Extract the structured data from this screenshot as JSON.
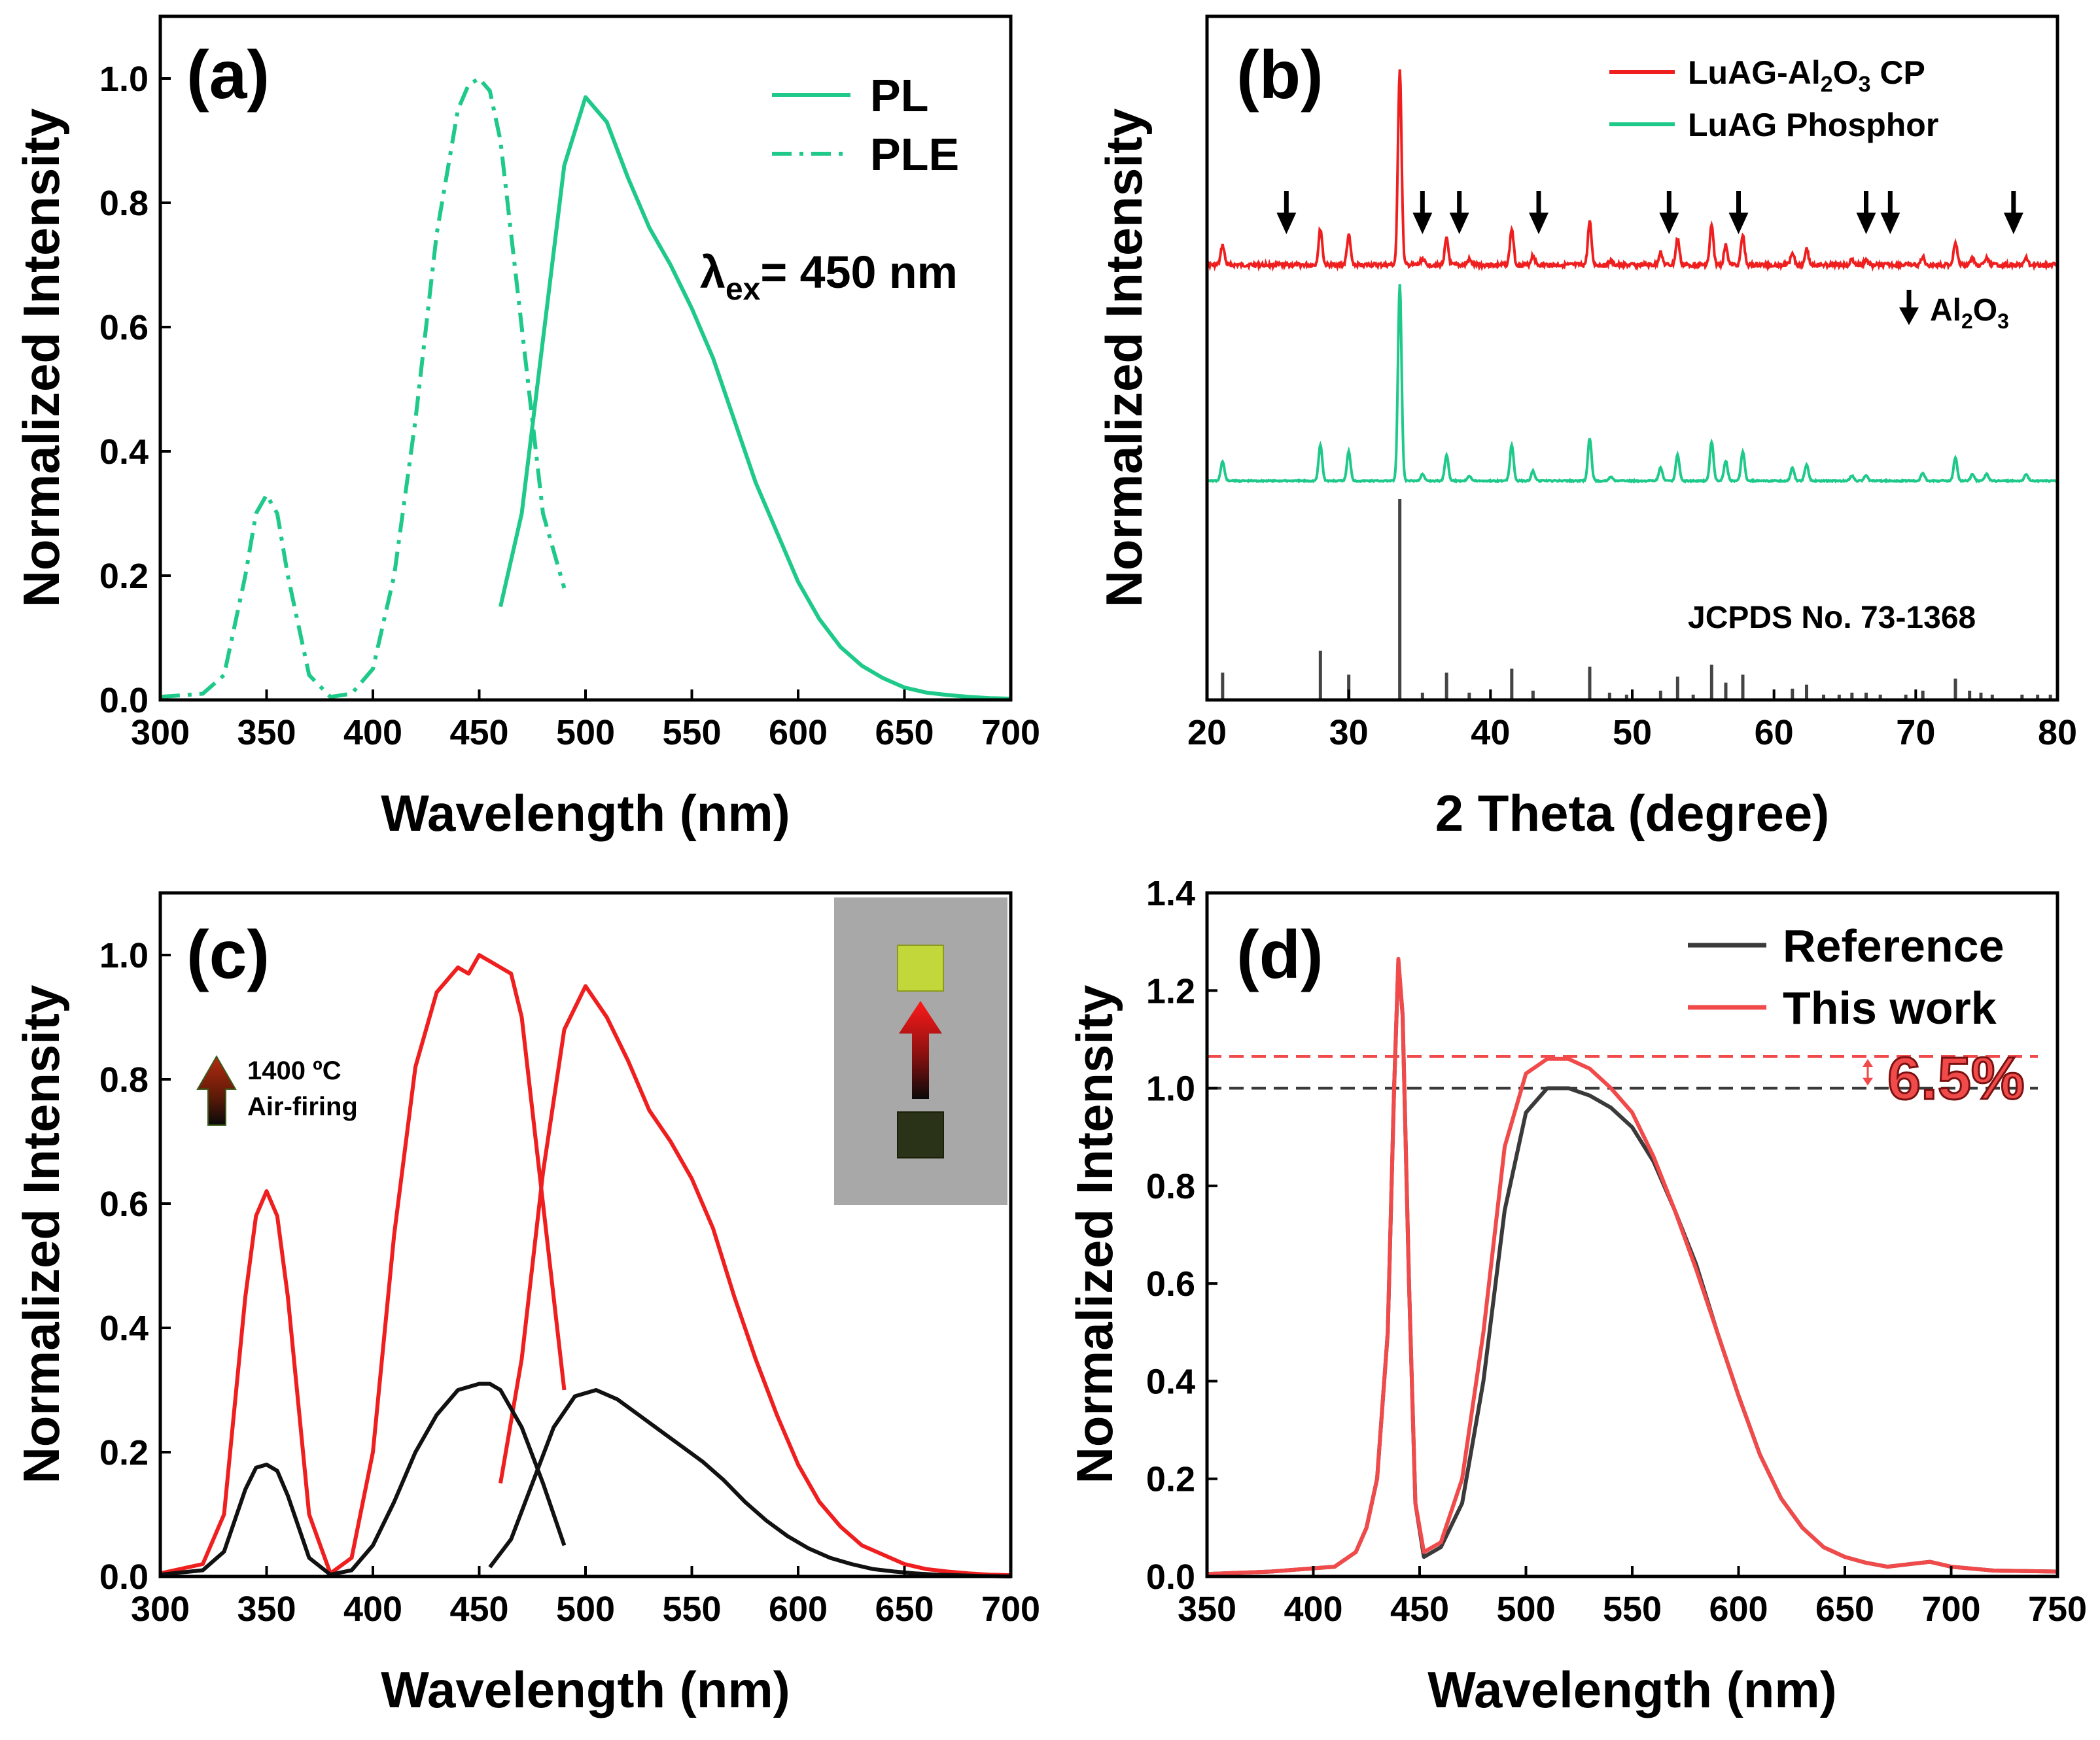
{
  "colors": {
    "teal": "#1ec98a",
    "red": "#ef1f1f",
    "black": "#111111",
    "gray_ref": "#3a3a3a",
    "light_red": "#f04a4a",
    "stick_gray": "#444444",
    "inset_bg": "#a8a8a8"
  },
  "chart_data": [
    {
      "panel": "a",
      "type": "line",
      "panel_label": "(a)",
      "xlabel": "Wavelength (nm)",
      "ylabel": "Normalized Intensity",
      "xlim": [
        300,
        700
      ],
      "ylim": [
        0,
        1.1
      ],
      "xticks": [
        300,
        350,
        400,
        450,
        500,
        550,
        600,
        650,
        700
      ],
      "yticks": [
        0.0,
        0.2,
        0.4,
        0.6,
        0.8,
        1.0
      ],
      "legend_position": "top-right",
      "annotation": {
        "symbol": "λ",
        "subscript": "ex",
        "rest": "= 450 nm"
      },
      "series": [
        {
          "name": "PL",
          "style": "solid",
          "x": [
            460,
            470,
            480,
            490,
            500,
            510,
            520,
            530,
            540,
            550,
            560,
            570,
            580,
            590,
            600,
            610,
            620,
            630,
            640,
            650,
            660,
            670,
            680,
            690,
            700
          ],
          "y": [
            0.15,
            0.3,
            0.58,
            0.86,
            0.97,
            0.93,
            0.84,
            0.76,
            0.7,
            0.63,
            0.55,
            0.45,
            0.35,
            0.27,
            0.19,
            0.13,
            0.085,
            0.055,
            0.035,
            0.02,
            0.012,
            0.008,
            0.005,
            0.003,
            0.002
          ]
        },
        {
          "name": "PLE",
          "style": "dashdot",
          "x": [
            300,
            320,
            330,
            340,
            345,
            350,
            355,
            360,
            370,
            380,
            390,
            400,
            410,
            420,
            430,
            440,
            445,
            450,
            455,
            460,
            470,
            480,
            490
          ],
          "y": [
            0.005,
            0.01,
            0.04,
            0.2,
            0.3,
            0.33,
            0.3,
            0.2,
            0.04,
            0.005,
            0.01,
            0.05,
            0.2,
            0.45,
            0.75,
            0.95,
            0.99,
            1.0,
            0.98,
            0.9,
            0.6,
            0.3,
            0.18
          ]
        }
      ]
    },
    {
      "panel": "b",
      "type": "line",
      "panel_label": "(b)",
      "xlabel": "2 Theta (degree)",
      "ylabel": "Normalized Intensity",
      "xlim": [
        20,
        80
      ],
      "xticks": [
        20,
        30,
        40,
        50,
        60,
        70,
        80
      ],
      "legend_position": "top-right",
      "legend": [
        {
          "name": "LuAG-Al2O3 CP",
          "main": "LuAG-Al",
          "sub1": "2",
          "mid": "O",
          "sub2": "3",
          "tail": " CP",
          "color": "#ef1f1f"
        },
        {
          "name": "LuAG Phosphor",
          "label": "LuAG Phosphor",
          "color": "#1ec98a"
        }
      ],
      "arrow_label": {
        "main": "Al",
        "sub1": "2",
        "mid": "O",
        "sub2": "3"
      },
      "reference_label": "JCPDS No. 73-1368",
      "peaks": [
        {
          "x": 21.1,
          "h": 0.3
        },
        {
          "x": 28.0,
          "h": 0.55
        },
        {
          "x": 30.0,
          "h": 0.45
        },
        {
          "x": 33.6,
          "h": 3.0
        },
        {
          "x": 35.2,
          "h": 0.1
        },
        {
          "x": 36.9,
          "h": 0.4
        },
        {
          "x": 38.5,
          "h": 0.08
        },
        {
          "x": 41.5,
          "h": 0.55
        },
        {
          "x": 43.0,
          "h": 0.15
        },
        {
          "x": 47.0,
          "h": 0.65
        },
        {
          "x": 48.5,
          "h": 0.06
        },
        {
          "x": 52.0,
          "h": 0.2
        },
        {
          "x": 53.2,
          "h": 0.4
        },
        {
          "x": 55.6,
          "h": 0.6
        },
        {
          "x": 56.6,
          "h": 0.3
        },
        {
          "x": 57.8,
          "h": 0.45
        },
        {
          "x": 61.3,
          "h": 0.2
        },
        {
          "x": 62.3,
          "h": 0.25
        },
        {
          "x": 65.5,
          "h": 0.08
        },
        {
          "x": 66.5,
          "h": 0.08
        },
        {
          "x": 70.5,
          "h": 0.12
        },
        {
          "x": 72.8,
          "h": 0.35
        },
        {
          "x": 74.0,
          "h": 0.1
        },
        {
          "x": 75.0,
          "h": 0.1
        },
        {
          "x": 77.8,
          "h": 0.1
        }
      ],
      "reference_sticks": [
        {
          "x": 21.1,
          "h": 0.13
        },
        {
          "x": 28.0,
          "h": 0.24
        },
        {
          "x": 30.0,
          "h": 0.12
        },
        {
          "x": 33.6,
          "h": 1.0
        },
        {
          "x": 35.2,
          "h": 0.03
        },
        {
          "x": 36.9,
          "h": 0.13
        },
        {
          "x": 38.5,
          "h": 0.03
        },
        {
          "x": 41.5,
          "h": 0.15
        },
        {
          "x": 43.0,
          "h": 0.04
        },
        {
          "x": 47.0,
          "h": 0.16
        },
        {
          "x": 48.4,
          "h": 0.03
        },
        {
          "x": 49.6,
          "h": 0.02
        },
        {
          "x": 52.0,
          "h": 0.04
        },
        {
          "x": 53.2,
          "h": 0.11
        },
        {
          "x": 54.3,
          "h": 0.02
        },
        {
          "x": 55.6,
          "h": 0.17
        },
        {
          "x": 56.6,
          "h": 0.08
        },
        {
          "x": 57.8,
          "h": 0.12
        },
        {
          "x": 61.3,
          "h": 0.05
        },
        {
          "x": 62.3,
          "h": 0.07
        },
        {
          "x": 63.5,
          "h": 0.02
        },
        {
          "x": 64.6,
          "h": 0.02
        },
        {
          "x": 65.5,
          "h": 0.03
        },
        {
          "x": 66.5,
          "h": 0.03
        },
        {
          "x": 67.5,
          "h": 0.02
        },
        {
          "x": 69.3,
          "h": 0.02
        },
        {
          "x": 70.5,
          "h": 0.04
        },
        {
          "x": 72.8,
          "h": 0.1
        },
        {
          "x": 73.8,
          "h": 0.04
        },
        {
          "x": 74.6,
          "h": 0.03
        },
        {
          "x": 75.4,
          "h": 0.02
        },
        {
          "x": 77.5,
          "h": 0.02
        },
        {
          "x": 78.6,
          "h": 0.02
        },
        {
          "x": 79.5,
          "h": 0.02
        }
      ],
      "al2o3_peaks": [
        25.6,
        35.2,
        37.8,
        43.4,
        52.6,
        57.5,
        66.5,
        68.2,
        76.9
      ]
    },
    {
      "panel": "c",
      "type": "line",
      "panel_label": "(c)",
      "xlabel": "Wavelength (nm)",
      "ylabel": "Normalized Intensity",
      "xlim": [
        300,
        700
      ],
      "ylim": [
        0,
        1.1
      ],
      "xticks": [
        300,
        350,
        400,
        450,
        500,
        550,
        600,
        650,
        700
      ],
      "yticks": [
        0.0,
        0.2,
        0.4,
        0.6,
        0.8,
        1.0
      ],
      "arrow_label_line1": "1400 ºC",
      "arrow_label_line2": "Air-firing",
      "inset": "photo of two square samples; lower sample dark, upper sample yellow-green, red-to-black arrow between them",
      "series": [
        {
          "color": "red",
          "x": [
            300,
            320,
            330,
            340,
            345,
            350,
            355,
            360,
            370,
            380,
            390,
            400,
            410,
            420,
            430,
            440,
            445,
            450,
            455,
            460,
            465,
            470,
            480,
            490
          ],
          "y": [
            0.005,
            0.02,
            0.1,
            0.45,
            0.58,
            0.62,
            0.58,
            0.45,
            0.1,
            0.005,
            0.03,
            0.2,
            0.55,
            0.82,
            0.94,
            0.98,
            0.97,
            1.0,
            0.99,
            0.98,
            0.97,
            0.9,
            0.6,
            0.3
          ]
        },
        {
          "color": "red",
          "x": [
            460,
            470,
            480,
            490,
            500,
            510,
            520,
            530,
            540,
            550,
            560,
            570,
            580,
            590,
            600,
            610,
            620,
            630,
            640,
            650,
            660,
            670,
            680,
            690,
            700
          ],
          "y": [
            0.15,
            0.35,
            0.65,
            0.88,
            0.95,
            0.9,
            0.83,
            0.75,
            0.7,
            0.64,
            0.56,
            0.45,
            0.35,
            0.26,
            0.18,
            0.12,
            0.08,
            0.05,
            0.035,
            0.02,
            0.012,
            0.008,
            0.005,
            0.003,
            0.002
          ]
        },
        {
          "color": "black",
          "x": [
            300,
            320,
            330,
            340,
            345,
            350,
            355,
            360,
            370,
            380,
            390,
            400,
            410,
            420,
            430,
            440,
            450,
            455,
            460,
            470,
            480,
            490
          ],
          "y": [
            0.003,
            0.01,
            0.04,
            0.14,
            0.175,
            0.18,
            0.17,
            0.13,
            0.03,
            0.003,
            0.01,
            0.05,
            0.12,
            0.2,
            0.26,
            0.3,
            0.31,
            0.31,
            0.3,
            0.24,
            0.15,
            0.05
          ]
        },
        {
          "color": "black",
          "x": [
            455,
            465,
            475,
            485,
            495,
            505,
            515,
            525,
            535,
            545,
            555,
            565,
            575,
            585,
            595,
            605,
            615,
            625,
            635,
            645,
            655,
            665,
            675,
            685,
            700
          ],
          "y": [
            0.015,
            0.06,
            0.15,
            0.24,
            0.29,
            0.3,
            0.285,
            0.26,
            0.235,
            0.21,
            0.185,
            0.155,
            0.12,
            0.09,
            0.065,
            0.045,
            0.03,
            0.02,
            0.012,
            0.008,
            0.005,
            0.003,
            0.002,
            0.001,
            0.0
          ]
        }
      ]
    },
    {
      "panel": "d",
      "type": "line",
      "panel_label": "(d)",
      "xlabel": "Wavelength (nm)",
      "ylabel": "Normalized Intensity",
      "xlim": [
        350,
        750
      ],
      "ylim": [
        0,
        1.4
      ],
      "xticks": [
        350,
        400,
        450,
        500,
        550,
        600,
        650,
        700,
        750
      ],
      "yticks": [
        0.0,
        0.2,
        0.4,
        0.6,
        0.8,
        1.0,
        1.2,
        1.4
      ],
      "legend_position": "top-right",
      "reference_lines": [
        1.0,
        1.065
      ],
      "annotation": "6.5%",
      "series": [
        {
          "name": "Reference",
          "color": "#3a3a3a",
          "x": [
            350,
            380,
            410,
            420,
            425,
            430,
            435,
            438,
            440,
            442,
            445,
            448,
            452,
            460,
            470,
            480,
            490,
            500,
            510,
            520,
            530,
            540,
            550,
            560,
            570,
            580,
            590,
            600,
            610,
            620,
            630,
            640,
            650,
            660,
            670,
            680,
            690,
            700,
            720,
            750
          ],
          "y": [
            0.005,
            0.01,
            0.02,
            0.05,
            0.1,
            0.2,
            0.5,
            1.0,
            1.26,
            1.15,
            0.6,
            0.15,
            0.04,
            0.06,
            0.15,
            0.4,
            0.75,
            0.95,
            1.0,
            1.0,
            0.985,
            0.96,
            0.92,
            0.85,
            0.75,
            0.64,
            0.5,
            0.37,
            0.25,
            0.16,
            0.1,
            0.06,
            0.04,
            0.028,
            0.02,
            0.025,
            0.03,
            0.02,
            0.012,
            0.01
          ]
        },
        {
          "name": "This work",
          "color": "#f04a4a",
          "x": [
            350,
            380,
            410,
            420,
            425,
            430,
            435,
            438,
            440,
            442,
            445,
            448,
            452,
            460,
            470,
            480,
            490,
            500,
            510,
            520,
            530,
            540,
            550,
            560,
            570,
            580,
            590,
            600,
            610,
            620,
            630,
            640,
            650,
            660,
            670,
            680,
            690,
            700,
            720,
            750
          ],
          "y": [
            0.005,
            0.01,
            0.02,
            0.05,
            0.1,
            0.2,
            0.5,
            1.0,
            1.265,
            1.15,
            0.6,
            0.15,
            0.05,
            0.07,
            0.2,
            0.5,
            0.88,
            1.03,
            1.06,
            1.06,
            1.04,
            1.0,
            0.95,
            0.86,
            0.75,
            0.63,
            0.5,
            0.37,
            0.25,
            0.16,
            0.1,
            0.06,
            0.04,
            0.028,
            0.02,
            0.025,
            0.03,
            0.02,
            0.012,
            0.01
          ]
        }
      ]
    }
  ]
}
